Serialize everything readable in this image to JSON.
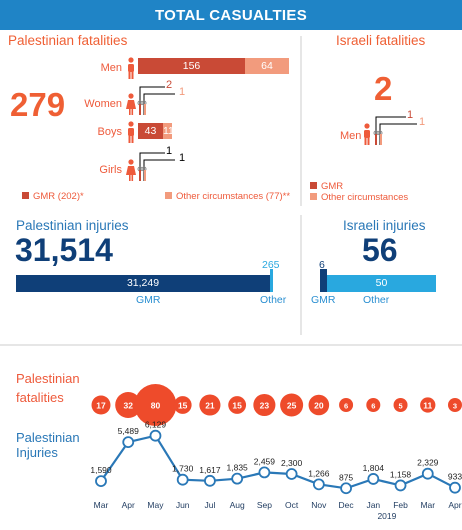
{
  "header": {
    "title": "TOTAL CASUALTIES"
  },
  "pal_fatalities": {
    "title": "Palestinian fatalities",
    "total": "279",
    "rows": [
      {
        "label": "Men",
        "gmr": 156,
        "other": 64
      },
      {
        "label": "Women",
        "gmr": 2,
        "other": 1
      },
      {
        "label": "Boys",
        "gmr": 43,
        "other": 11
      },
      {
        "label": "Girls",
        "gmr": 1,
        "other": 1
      }
    ],
    "legend_gmr": "GMR (202)*",
    "legend_other": "Other circumstances (77)**"
  },
  "isr_fatalities": {
    "title": "Israeli fatalities",
    "total": "2",
    "men_label": "Men",
    "men_gmr": "1",
    "men_other": "1",
    "legend_gmr": "GMR",
    "legend_other": "Other circumstances"
  },
  "pal_injuries": {
    "title": "Palestinian injuries",
    "total": "31,514",
    "gmr_value": "31,249",
    "other_value": "265",
    "gmr_label": "GMR",
    "other_label": "Other"
  },
  "isr_injuries": {
    "title": "Israeli injuries",
    "total": "56",
    "gmr_value": "6",
    "other_value": "50",
    "gmr_label": "GMR",
    "other_label": "Other"
  },
  "monthly": {
    "fatalities_label_1": "Palestinian",
    "fatalities_label_2": "fatalities",
    "injuries_label_1": "Palestinian",
    "injuries_label_2": "Injuries",
    "year_label": "2019"
  },
  "colors": {
    "header": "#1f84c6",
    "gmr_red": "#c94a36",
    "other_red": "#f29b7d",
    "fatality_circle": "#ee4b2b",
    "injury_navy": "#0f3f78",
    "injury_light": "#29a8df",
    "line": "#2a78b7"
  },
  "chart_data": [
    {
      "type": "bar",
      "categories": [
        "Mar",
        "Apr",
        "May",
        "Jun",
        "Jul",
        "Aug",
        "Sep",
        "Oct",
        "Nov",
        "Dec",
        "Jan",
        "Feb",
        "Mar",
        "Apr"
      ],
      "values": [
        17,
        32,
        80,
        15,
        21,
        15,
        23,
        25,
        20,
        6,
        6,
        5,
        11,
        3
      ],
      "encoding": "proportional circles"
    },
    {
      "type": "line",
      "categories": [
        "Mar",
        "Apr",
        "May",
        "Jun",
        "Jul",
        "Aug",
        "Sep",
        "Oct",
        "Nov",
        "Dec",
        "Jan",
        "Feb",
        "Mar",
        "Apr"
      ],
      "values": [
        1590,
        5489,
        6129,
        1730,
        1617,
        1835,
        2459,
        2300,
        1266,
        875,
        1804,
        1158,
        2329,
        933
      ],
      "value_labels": [
        "1,590",
        "5,489",
        "6,129",
        "1,730",
        "1,617",
        "1,835",
        "2,459",
        "2,300",
        "1,266",
        "875",
        "1,804",
        "1,158",
        "2,329",
        "933"
      ]
    }
  ]
}
